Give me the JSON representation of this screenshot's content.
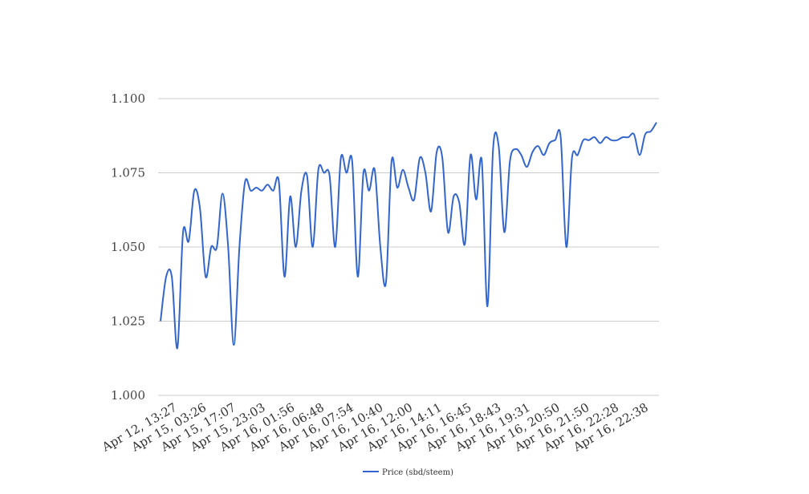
{
  "chart_data": {
    "type": "line",
    "title": "",
    "xlabel": "",
    "ylabel": "",
    "ylim": [
      1.0,
      1.1
    ],
    "y_ticks": [
      "1.000",
      "1.025",
      "1.050",
      "1.075",
      "1.100"
    ],
    "x_tick_labels": [
      "Apr 12, 13:27",
      "Apr 15, 03:26",
      "Apr 15, 17:07",
      "Apr 15, 23:03",
      "Apr 16, 01:56",
      "Apr 16, 06:48",
      "Apr 16, 07:54",
      "Apr 16, 10:40",
      "Apr 16, 12:00",
      "Apr 16, 14:11",
      "Apr 16, 16:45",
      "Apr 16, 18:43",
      "Apr 16, 19:31",
      "Apr 16, 20:50",
      "Apr 16, 21:50",
      "Apr 16, 22:28",
      "Apr 16, 22:38"
    ],
    "grid": true,
    "legend_position": "bottom",
    "series": [
      {
        "name": "Price (sbd/steem)",
        "color": "#3366cc",
        "values": [
          1.025,
          1.04,
          1.04,
          1.016,
          1.055,
          1.052,
          1.069,
          1.063,
          1.04,
          1.05,
          1.05,
          1.068,
          1.05,
          1.017,
          1.05,
          1.072,
          1.069,
          1.07,
          1.069,
          1.071,
          1.069,
          1.072,
          1.04,
          1.067,
          1.05,
          1.069,
          1.074,
          1.05,
          1.076,
          1.075,
          1.074,
          1.05,
          1.08,
          1.075,
          1.079,
          1.04,
          1.075,
          1.069,
          1.076,
          1.05,
          1.038,
          1.079,
          1.07,
          1.076,
          1.07,
          1.066,
          1.08,
          1.075,
          1.062,
          1.082,
          1.08,
          1.055,
          1.067,
          1.065,
          1.051,
          1.081,
          1.066,
          1.079,
          1.03,
          1.083,
          1.084,
          1.055,
          1.079,
          1.083,
          1.081,
          1.077,
          1.082,
          1.084,
          1.081,
          1.085,
          1.086,
          1.087,
          1.05,
          1.08,
          1.081,
          1.086,
          1.086,
          1.087,
          1.085,
          1.087,
          1.086,
          1.086,
          1.087,
          1.087,
          1.088,
          1.081,
          1.088,
          1.089,
          1.092
        ]
      }
    ]
  }
}
